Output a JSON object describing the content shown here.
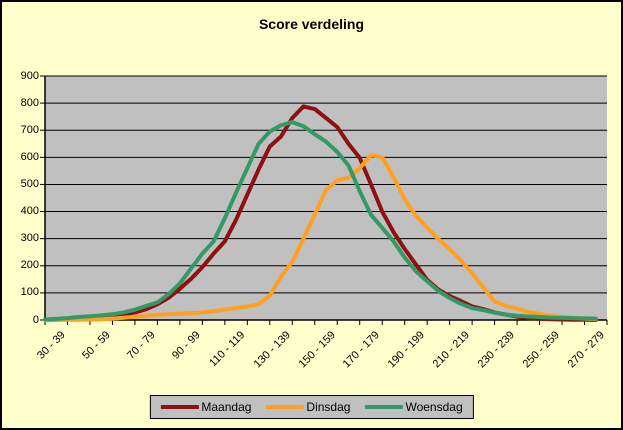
{
  "title": "Score verdeling",
  "colors": {
    "background": "#FFFFCC",
    "plot_background": "#C0C0C0",
    "gridline": "#000000",
    "axis": "#000000",
    "legend_background": "#C0C0C0"
  },
  "chart_data": {
    "type": "line",
    "title": "Score verdeling",
    "grid": true,
    "legend_position": "bottom",
    "ylim": [
      0,
      900
    ],
    "y_ticks": [
      0,
      100,
      200,
      300,
      400,
      500,
      600,
      700,
      800,
      900
    ],
    "categories": [
      "30 - 39",
      "40 - 49",
      "50 - 59",
      "60 - 69",
      "70 - 79",
      "80 - 89",
      "90 - 99",
      "100 - 109",
      "110 - 119",
      "120 - 129",
      "130 - 139",
      "140 - 149",
      "150 - 159",
      "160 - 169",
      "170 - 179",
      "180 - 189",
      "190 - 199",
      "200 - 209",
      "210 - 219",
      "220 - 229",
      "230 - 239",
      "240 - 249",
      "250 - 259",
      "260 - 269",
      "270 - 279"
    ],
    "x_tick_labels": [
      "30 - 39",
      "50 - 59",
      "70 - 79",
      "90 - 99",
      "110 - 119",
      "130 - 139",
      "150 - 159",
      "170 - 179",
      "190 - 199",
      "210 - 219",
      "230 - 239",
      "250 - 259",
      "270 - 279"
    ],
    "x_label_every_n_categories": 2,
    "x_start": 30,
    "x_step": 5,
    "x_range": [
      30,
      280
    ],
    "series": [
      {
        "name": "Maandag",
        "color": "#8E1010",
        "values": [
          1,
          2,
          3,
          5,
          7,
          11,
          14,
          19,
          28,
          40,
          58,
          82,
          115,
          152,
          195,
          245,
          290,
          370,
          462,
          555,
          640,
          677,
          745,
          788,
          778,
          745,
          712,
          650,
          598,
          500,
          400,
          325,
          262,
          205,
          148,
          112,
          88,
          70,
          50,
          40,
          28,
          20,
          12,
          7,
          4,
          3,
          2,
          1,
          1,
          0
        ]
      },
      {
        "name": "Dinsdag",
        "color": "#FFA01E",
        "values": [
          0,
          0,
          1,
          1,
          2,
          3,
          5,
          8,
          12,
          16,
          19,
          21,
          23,
          25,
          28,
          33,
          38,
          44,
          50,
          58,
          90,
          160,
          215,
          300,
          390,
          480,
          515,
          525,
          560,
          608,
          600,
          528,
          445,
          385,
          340,
          298,
          262,
          220,
          172,
          120,
          68,
          52,
          42,
          30,
          22,
          16,
          11,
          8,
          5,
          3
        ]
      },
      {
        "name": "Woensdag",
        "color": "#339966",
        "values": [
          2,
          4,
          7,
          11,
          14,
          17,
          21,
          28,
          38,
          52,
          65,
          95,
          135,
          190,
          245,
          290,
          375,
          470,
          560,
          650,
          695,
          718,
          730,
          715,
          685,
          658,
          620,
          570,
          475,
          388,
          340,
          291,
          230,
          180,
          143,
          107,
          81,
          60,
          44,
          36,
          27,
          20,
          16,
          13,
          11,
          9,
          8,
          7,
          6,
          5
        ]
      }
    ]
  }
}
